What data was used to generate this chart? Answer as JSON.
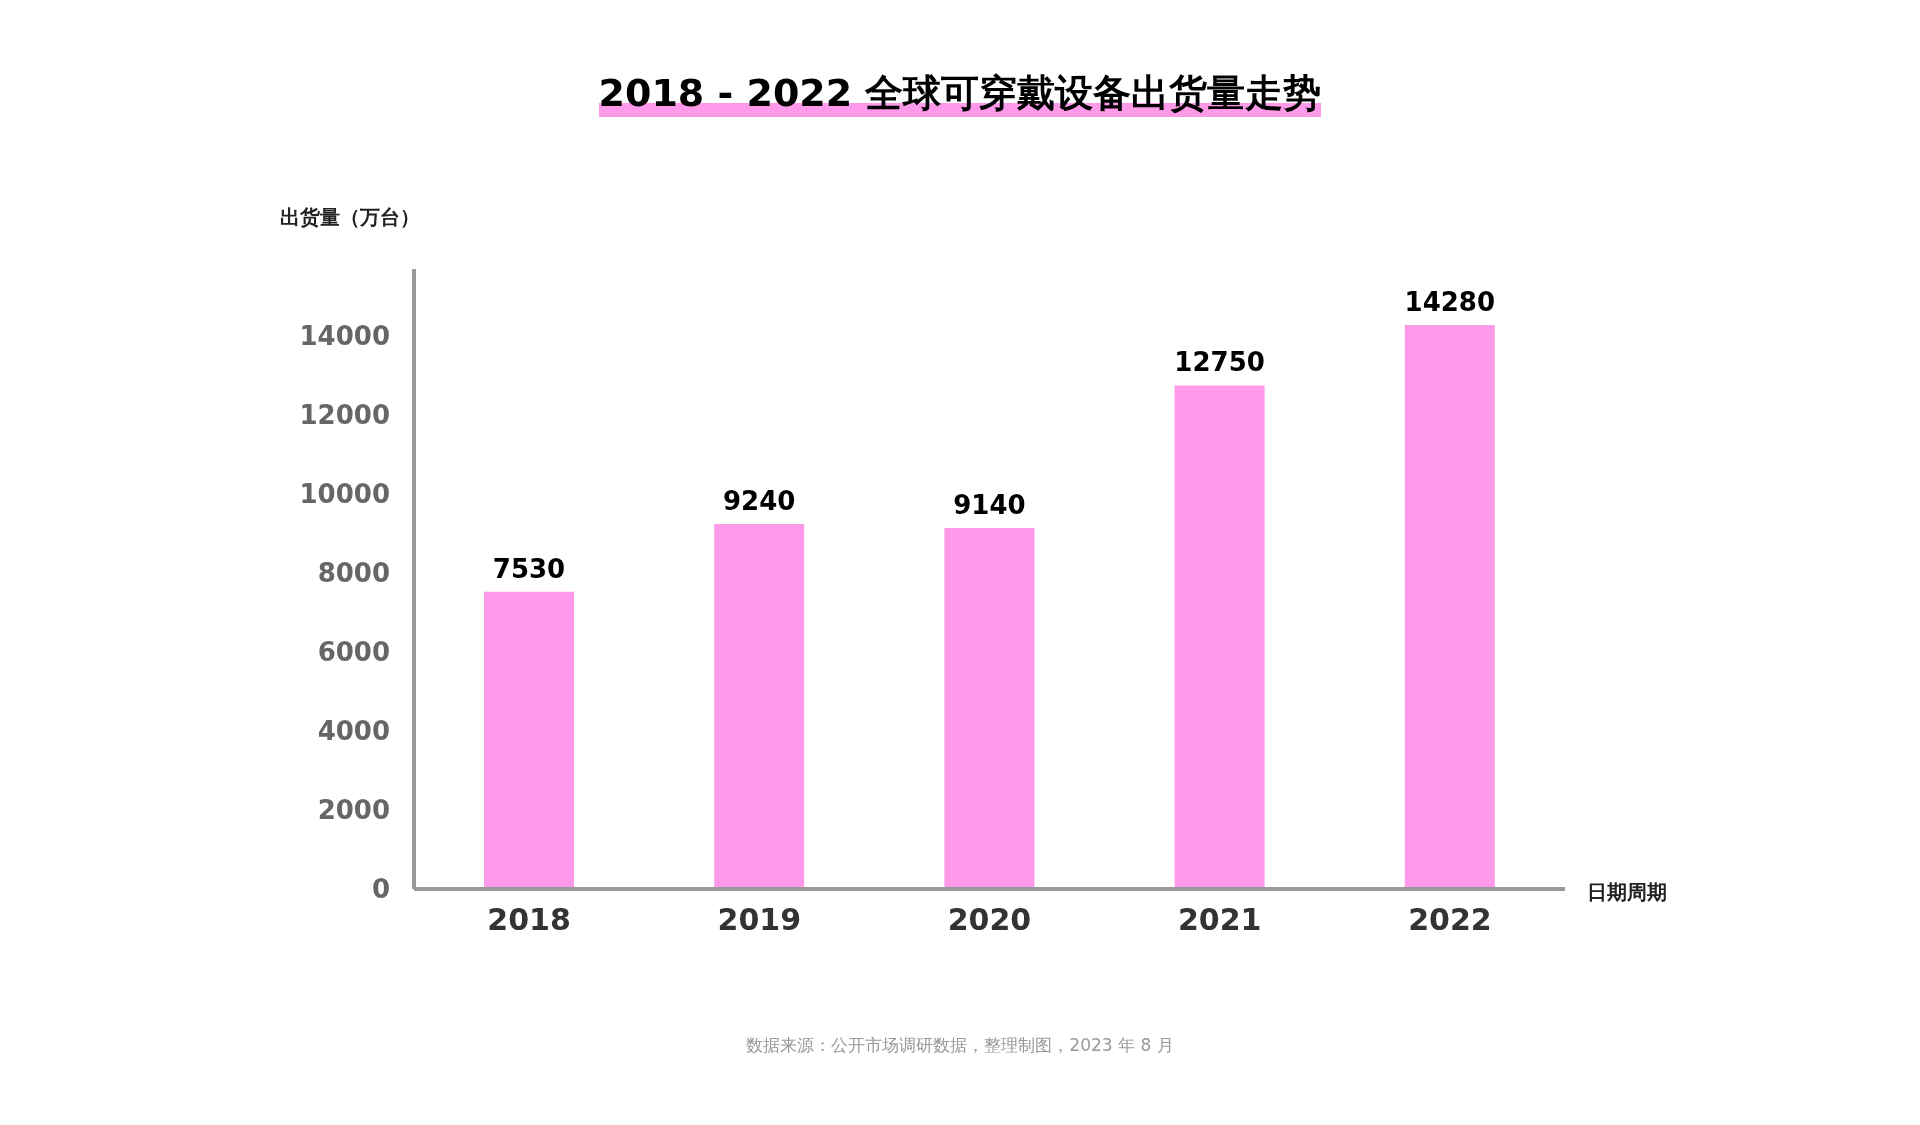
{
  "chart_data": {
    "type": "bar",
    "title": "2018 - 2022 全球可穿戴设备出货量走势",
    "ylabel": "出货量（万台）",
    "xlabel": "日期周期",
    "categories": [
      "2018",
      "2019",
      "2020",
      "2021",
      "2022"
    ],
    "values": [
      7530,
      9240,
      9140,
      12750,
      14280
    ],
    "color": "#ff99ea",
    "ylim": [
      0,
      15700
    ],
    "yticks": [
      0,
      2000,
      4000,
      6000,
      8000,
      10000,
      12000,
      14000
    ],
    "grid": false,
    "legend": false,
    "data_labels": true,
    "annotations": [
      "数据来源：公开市场调研数据，整理制图，2023 年 8 月"
    ]
  }
}
